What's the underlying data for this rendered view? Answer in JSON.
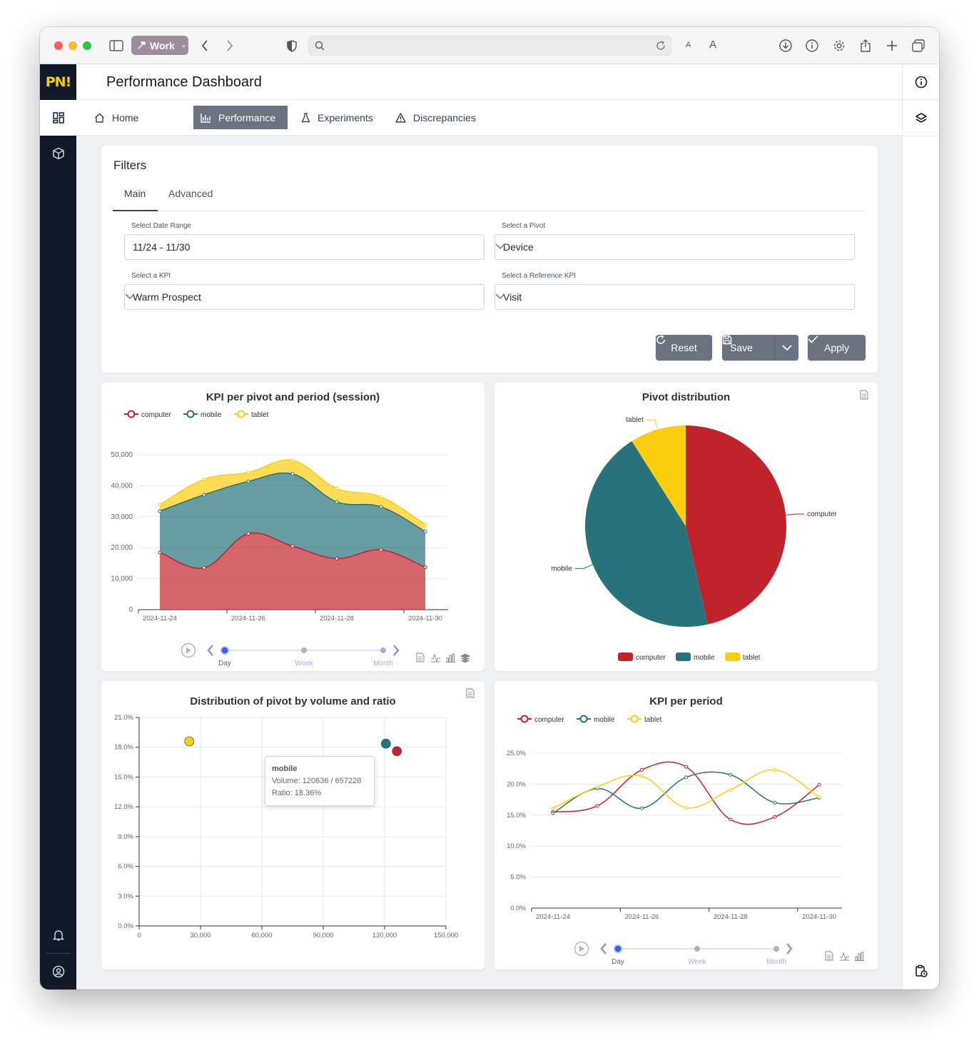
{
  "browser": {
    "profile_label": "Work",
    "font_small": "A",
    "font_large": "A"
  },
  "app": {
    "logo": "PN!",
    "page_title": "Performance Dashboard"
  },
  "tabs": [
    {
      "label": "Home",
      "icon": "home-icon"
    },
    {
      "label": "Performance",
      "icon": "bar-chart-icon"
    },
    {
      "label": "Experiments",
      "icon": "flask-icon"
    },
    {
      "label": "Discrepancies",
      "icon": "warning-icon"
    }
  ],
  "filters": {
    "title": "Filters",
    "tabs": [
      "Main",
      "Advanced"
    ],
    "date_range_label": "Select Date Range",
    "date_range_value": "11/24 - 11/30",
    "pivot_label": "Select a Pivot",
    "pivot_value": "Device",
    "kpi_label": "Select a KPI",
    "kpi_value": "Warm Prospect",
    "ref_kpi_label": "Select a Reference KPI",
    "ref_kpi_value": "Visit",
    "reset_label": "Reset",
    "save_label": "Save",
    "apply_label": "Apply"
  },
  "colors": {
    "computer": "#c0232c",
    "mobile": "#27727b",
    "tablet": "#fcce10",
    "accent_gray": "#6b7280",
    "timeline_blue": "#3366ee"
  },
  "timeline": {
    "steps": [
      "Day",
      "Week",
      "Month"
    ],
    "active": "Day"
  },
  "chart_data": [
    {
      "title": "KPI per pivot and period (session)",
      "type": "area",
      "stacked": true,
      "legend": [
        "computer",
        "mobile",
        "tablet"
      ],
      "x": [
        "2024-11-24",
        "2024-11-25",
        "2024-11-26",
        "2024-11-27",
        "2024-11-28",
        "2024-11-29",
        "2024-11-30"
      ],
      "x_tick_labels": [
        "2024-11-24",
        "2024-11-26",
        "2024-11-28",
        "2024-11-30"
      ],
      "y_ticks": [
        "0",
        "10,000",
        "20,000",
        "30,000",
        "40,000",
        "50,000"
      ],
      "ylim": [
        0,
        50000
      ],
      "series": [
        {
          "name": "computer",
          "values": [
            18500,
            13500,
            24500,
            20500,
            16500,
            19300,
            13700
          ]
        },
        {
          "name": "mobile",
          "values": [
            13300,
            23600,
            16900,
            23300,
            18300,
            13900,
            11500
          ]
        },
        {
          "name": "tablet",
          "values": [
            2100,
            5000,
            2900,
            4400,
            4300,
            3200,
            2300
          ]
        }
      ]
    },
    {
      "title": "Pivot distribution",
      "type": "pie",
      "legend": [
        "computer",
        "mobile",
        "tablet"
      ],
      "slices": [
        {
          "name": "computer",
          "value": 46.5
        },
        {
          "name": "mobile",
          "value": 44.5
        },
        {
          "name": "tablet",
          "value": 9.0
        }
      ]
    },
    {
      "title": "Distribution of pivot by volume and ratio",
      "type": "scatter",
      "x_ticks": [
        "0",
        "30,000",
        "60,000",
        "90,000",
        "120,000",
        "150,000"
      ],
      "y_ticks": [
        "0.0%",
        "3.0%",
        "6.0%",
        "9.0%",
        "12.0%",
        "15.0%",
        "18.0%",
        "21.0%"
      ],
      "xlim": [
        0,
        150000
      ],
      "ylim": [
        0,
        21
      ],
      "points": [
        {
          "name": "tablet",
          "x": 24500,
          "y": 18.6
        },
        {
          "name": "mobile",
          "x": 120636,
          "y": 18.36
        },
        {
          "name": "computer",
          "x": 126000,
          "y": 17.6
        }
      ],
      "tooltip": {
        "name": "mobile",
        "volume": "Volume: 120636 / 657228",
        "ratio": "Ratio: 18.36%"
      }
    },
    {
      "title": "KPI per period",
      "type": "line",
      "legend": [
        "computer",
        "mobile",
        "tablet"
      ],
      "x": [
        "2024-11-24",
        "2024-11-25",
        "2024-11-26",
        "2024-11-27",
        "2024-11-28",
        "2024-11-29",
        "2024-11-30"
      ],
      "x_tick_labels": [
        "2024-11-24",
        "2024-11-26",
        "2024-11-28",
        "2024-11-30"
      ],
      "y_ticks": [
        "0.0%",
        "5.0%",
        "10.0%",
        "15.0%",
        "20.0%",
        "25.0%"
      ],
      "ylim": [
        0,
        25
      ],
      "series": [
        {
          "name": "computer",
          "values": [
            15.5,
            16.5,
            22.3,
            22.8,
            14.3,
            14.7,
            19.9
          ]
        },
        {
          "name": "mobile",
          "values": [
            15.3,
            19.3,
            16.1,
            21.1,
            21.5,
            17.0,
            17.8
          ]
        },
        {
          "name": "tablet",
          "values": [
            16.1,
            19.6,
            21.3,
            16.2,
            19.1,
            22.3,
            17.9
          ]
        }
      ]
    }
  ]
}
